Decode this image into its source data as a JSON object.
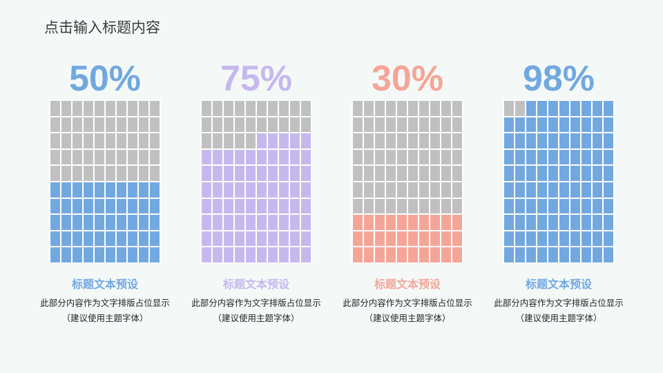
{
  "title": "点击输入标题内容",
  "cards": [
    {
      "percent_label": "50%",
      "fraction": 0.5,
      "color": "#72a8e0",
      "heading": "标题文本预设",
      "description": "此部分内容作为文字排版占位显示 （建议使用主题字体）"
    },
    {
      "percent_label": "75%",
      "fraction": 0.75,
      "color": "#c6b8ee",
      "heading": "标题文本预设",
      "description": "此部分内容作为文字排版占位显示 （建议使用主题字体）"
    },
    {
      "percent_label": "30%",
      "fraction": 0.3,
      "color": "#f5a597",
      "heading": "标题文本预设",
      "description": "此部分内容作为文字排版占位显示 （建议使用主题字体）"
    },
    {
      "percent_label": "98%",
      "fraction": 0.98,
      "color": "#72a8e0",
      "heading": "标题文本预设",
      "description": "此部分内容作为文字排版占位显示 （建议使用主题字体）"
    }
  ],
  "empty_cell_color": "#c0c0c0"
}
